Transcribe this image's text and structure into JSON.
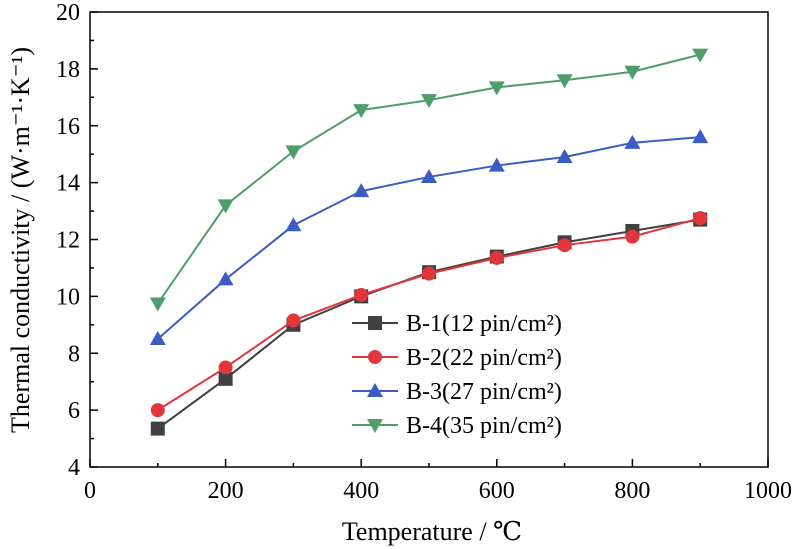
{
  "chart_data": {
    "type": "line",
    "xlabel": "Temperature / ℃",
    "ylabel": "Thermal conductivity / (W·m⁻¹·K⁻¹)",
    "xlim": [
      0,
      1000
    ],
    "ylim": [
      4,
      20
    ],
    "xticks": [
      0,
      200,
      400,
      600,
      800,
      1000
    ],
    "yticks": [
      4,
      6,
      8,
      10,
      12,
      14,
      16,
      18,
      20
    ],
    "grid": false,
    "legend_position": "center-right",
    "x": [
      100,
      200,
      300,
      400,
      500,
      600,
      700,
      800,
      900
    ],
    "series": [
      {
        "name": "B-1(12 pin/cm²)",
        "color": "#404040",
        "marker": "square",
        "values": [
          5.35,
          7.1,
          9.0,
          10.0,
          10.85,
          11.4,
          11.9,
          12.3,
          12.7
        ]
      },
      {
        "name": "B-2(22 pin/cm²)",
        "color": "#e0363c",
        "marker": "circle",
        "values": [
          6.0,
          7.5,
          9.15,
          10.05,
          10.8,
          11.35,
          11.8,
          12.1,
          12.75
        ]
      },
      {
        "name": "B-3(27 pin/cm²)",
        "color": "#3b5cc4",
        "marker": "triangle-up",
        "values": [
          8.5,
          10.6,
          12.5,
          13.7,
          14.2,
          14.6,
          14.9,
          15.4,
          15.6
        ]
      },
      {
        "name": "B-4(35 pin/cm²)",
        "color": "#4f9e6a",
        "marker": "triangle-down",
        "values": [
          9.75,
          13.2,
          15.1,
          16.55,
          16.9,
          17.35,
          17.6,
          17.9,
          18.5
        ]
      }
    ]
  }
}
